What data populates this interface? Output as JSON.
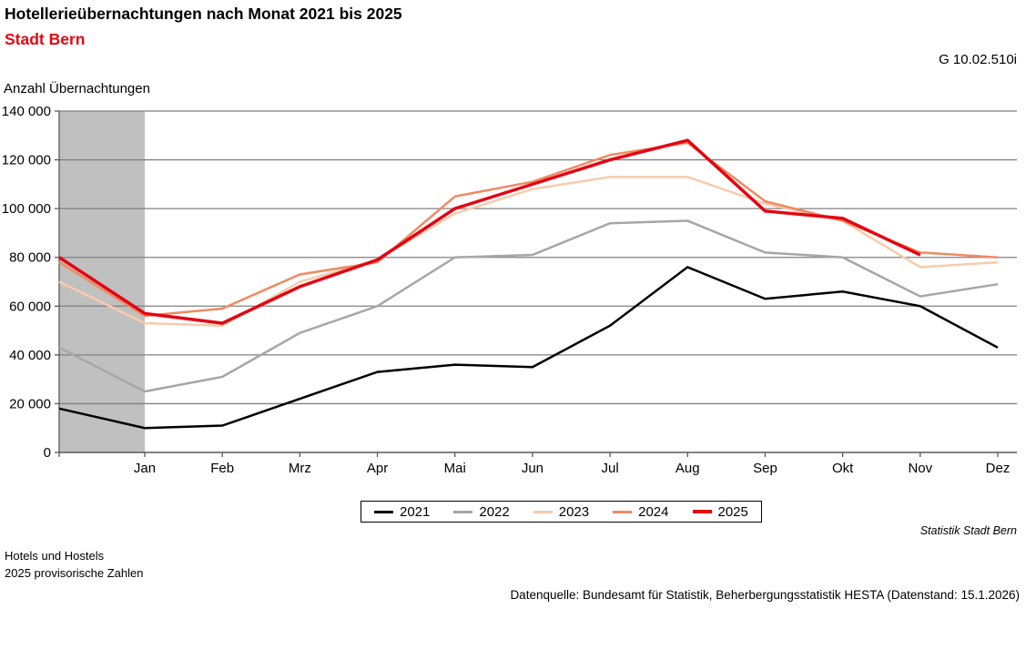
{
  "header": {
    "title": "Hotellerieübernachtungen nach Monat 2021 bis 2025",
    "subtitle": "Stadt Bern",
    "subtitle_color": "#e30613",
    "graph_id": "G 10.02.510i"
  },
  "chart_data": {
    "type": "line",
    "title": "Hotellerieübernachtungen nach Monat 2021 bis 2025",
    "subtitle": "Stadt Bern",
    "ylabel": "Anzahl Übernachtungen",
    "ylim": [
      0,
      140000
    ],
    "ytick_step": 20000,
    "grid": true,
    "legend_position": "bottom",
    "gridline_color": "#808080",
    "axis_color": "#595959",
    "highlight_band": {
      "from_category_index": 0,
      "to_category_index": 1,
      "color": "#c0c0c0"
    },
    "categories": [
      "",
      "Jan",
      "Feb",
      "Mrz",
      "Apr",
      "Mai",
      "Jun",
      "Jul",
      "Aug",
      "Sep",
      "Okt",
      "Nov",
      "Dez"
    ],
    "series": [
      {
        "name": "2021",
        "color": "#000000",
        "width": 2.5,
        "values": [
          18000,
          10000,
          11000,
          22000,
          33000,
          36000,
          35000,
          52000,
          76000,
          63000,
          66000,
          60000,
          43000
        ]
      },
      {
        "name": "2022",
        "color": "#a6a6a6",
        "width": 2.5,
        "values": [
          43000,
          25000,
          31000,
          49000,
          60000,
          80000,
          81000,
          94000,
          95000,
          82000,
          80000,
          64000,
          69000
        ]
      },
      {
        "name": "2023",
        "color": "#f8cbad",
        "width": 2.5,
        "values": [
          70000,
          53000,
          52000,
          70000,
          79000,
          98000,
          108000,
          113000,
          113000,
          102000,
          95000,
          76000,
          78000
        ]
      },
      {
        "name": "2024",
        "color": "#ef8a62",
        "width": 2.5,
        "values": [
          78000,
          56000,
          59000,
          73000,
          78000,
          105000,
          111000,
          122000,
          127000,
          103000,
          95000,
          82000,
          80000
        ]
      },
      {
        "name": "2025",
        "color": "#e30613",
        "width": 3.5,
        "values": [
          80000,
          57000,
          53000,
          68000,
          79000,
          100000,
          110000,
          120000,
          128000,
          99000,
          96000,
          81000,
          null
        ]
      }
    ]
  },
  "footer": {
    "attribution": "Statistik Stadt Bern",
    "note1": "Hotels und Hostels",
    "note2": "2025 provisorische Zahlen",
    "source": "Datenquelle: Bundesamt für Statistik, Beherbergungsstatistik HESTA (Datenstand: 15.1.2026)"
  }
}
